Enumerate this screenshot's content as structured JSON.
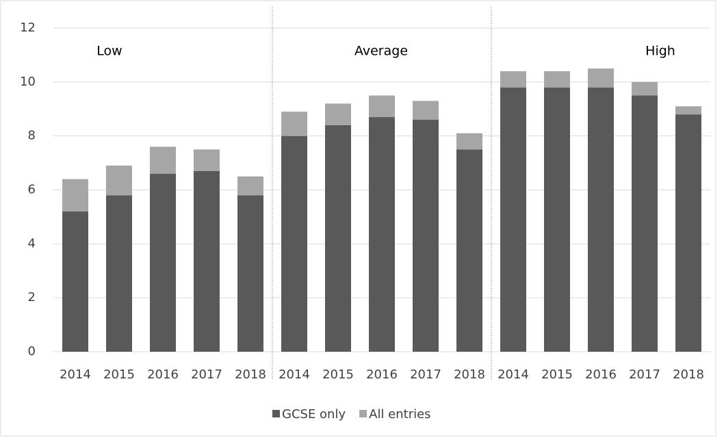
{
  "chart_data": {
    "type": "stacked_bar",
    "categories": [
      "2014",
      "2015",
      "2016",
      "2017",
      "2018",
      "2014",
      "2015",
      "2016",
      "2017",
      "2018",
      "2014",
      "2015",
      "2016",
      "2017",
      "2018"
    ],
    "series": [
      {
        "name": "GCSE only",
        "color": "#595959",
        "values": [
          5.2,
          5.8,
          6.6,
          6.7,
          5.8,
          8.0,
          8.4,
          8.7,
          8.6,
          7.5,
          9.8,
          9.8,
          9.8,
          9.5,
          8.8
        ]
      },
      {
        "name": "All entries",
        "color": "#a6a6a6",
        "values": [
          1.2,
          1.1,
          1.0,
          0.8,
          0.7,
          0.9,
          0.8,
          0.8,
          0.7,
          0.6,
          0.6,
          0.6,
          0.7,
          0.5,
          0.3
        ]
      }
    ],
    "annotations": [
      "Low",
      "Average",
      "High"
    ],
    "ylim": [
      0,
      12
    ],
    "yticks": [
      0,
      2,
      4,
      6,
      8,
      10,
      12
    ],
    "grid": true,
    "legend": "bottom"
  }
}
